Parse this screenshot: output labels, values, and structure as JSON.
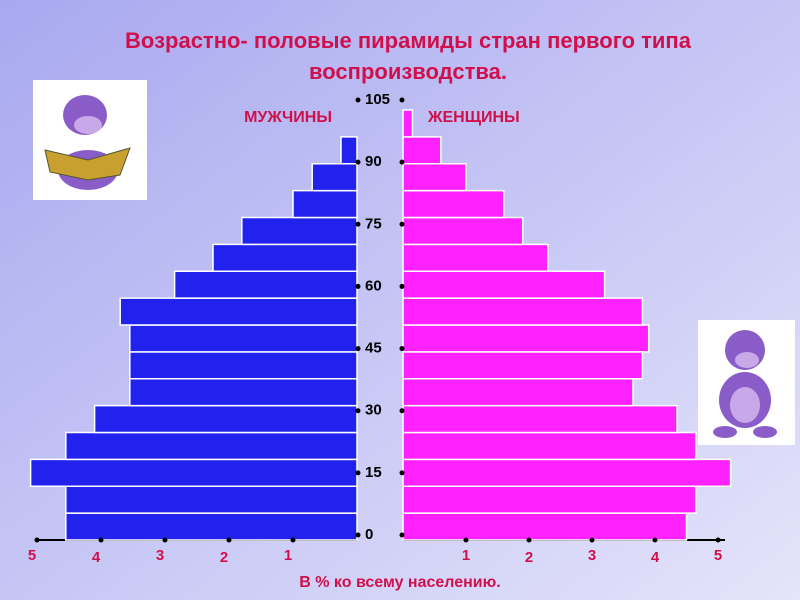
{
  "chart_data": {
    "type": "pyramid",
    "title": [
      "Возрастно- половые пирамиды стран первого типа",
      "воспроизводства."
    ],
    "categories": [
      null,
      null,
      null,
      null,
      null,
      null,
      null,
      null,
      null,
      null,
      null,
      null,
      null,
      null,
      null,
      null
    ],
    "series": [
      {
        "name": "МУЖЧИНЫ",
        "color": "#2222ee",
        "side": "left",
        "values": [
          4.55,
          4.55,
          5.1,
          4.55,
          4.1,
          3.55,
          3.55,
          3.55,
          3.7,
          2.85,
          2.25,
          1.8,
          1.0,
          0.7,
          0.25,
          null
        ]
      },
      {
        "name": "ЖЕНЩИНЫ",
        "color": "#ff22ff",
        "side": "right",
        "values": [
          4.5,
          4.65,
          5.2,
          4.65,
          4.35,
          3.65,
          3.8,
          3.9,
          3.8,
          3.2,
          2.3,
          1.9,
          1.6,
          1.0,
          0.6,
          0.15
        ]
      }
    ],
    "xlim": [
      0,
      5
    ],
    "xticks": [
      1,
      2,
      3,
      4,
      5
    ],
    "ylim": [
      0,
      105
    ],
    "yticks": [
      0,
      15,
      30,
      45,
      60,
      75,
      90,
      105
    ],
    "xlabel": "В % ко всему населению."
  }
}
